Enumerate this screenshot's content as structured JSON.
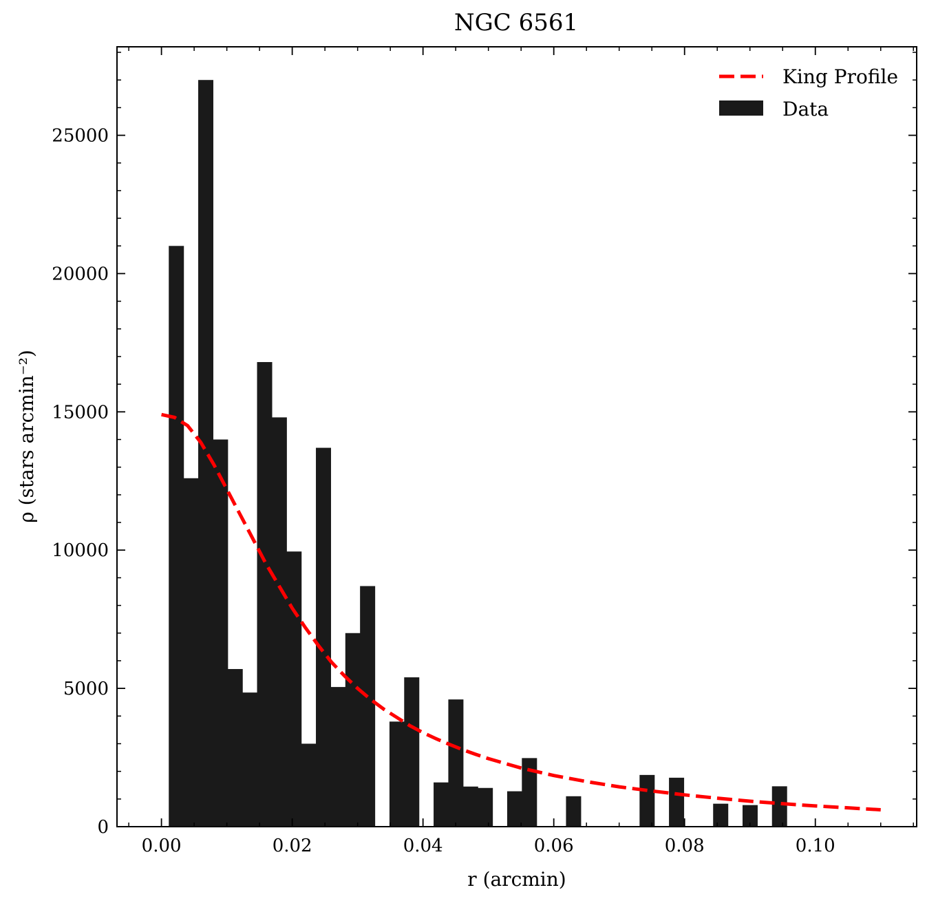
{
  "chart_data": {
    "type": "bar",
    "title": "NGC 6561",
    "xlabel": "r (arcmin)",
    "ylabel": "ρ (stars arcmin⁻²)",
    "xlim": [
      -0.0068,
      0.1155
    ],
    "ylim": [
      0,
      28200
    ],
    "x_ticks": [
      0.0,
      0.02,
      0.04,
      0.06,
      0.08,
      0.1
    ],
    "x_tick_labels": [
      "0.00",
      "0.02",
      "0.04",
      "0.06",
      "0.08",
      "0.10"
    ],
    "y_ticks": [
      0,
      5000,
      10000,
      15000,
      20000,
      25000
    ],
    "y_tick_labels": [
      "0",
      "5000",
      "10000",
      "15000",
      "20000",
      "25000"
    ],
    "x_minor_step": 0.005,
    "y_minor_step": 1000,
    "grid": false,
    "legend_position": "top-right",
    "colors": {
      "bars": "#1a1a1a",
      "king_profile": "#ff0000"
    },
    "series": [
      {
        "name": "Data",
        "kind": "histogram",
        "bin_width": 0.00225,
        "bins": [
          {
            "x0": 0.00112,
            "value": 21000
          },
          {
            "x0": 0.00337,
            "value": 12600
          },
          {
            "x0": 0.00562,
            "value": 27000
          },
          {
            "x0": 0.00787,
            "value": 14000
          },
          {
            "x0": 0.01012,
            "value": 5700
          },
          {
            "x0": 0.01237,
            "value": 4850
          },
          {
            "x0": 0.01462,
            "value": 16800
          },
          {
            "x0": 0.01687,
            "value": 14800
          },
          {
            "x0": 0.01912,
            "value": 9950
          },
          {
            "x0": 0.02137,
            "value": 3000
          },
          {
            "x0": 0.02362,
            "value": 13700
          },
          {
            "x0": 0.02587,
            "value": 5050
          },
          {
            "x0": 0.02812,
            "value": 7000
          },
          {
            "x0": 0.03037,
            "value": 8700
          },
          {
            "x0": 0.03487,
            "value": 3800
          },
          {
            "x0": 0.03712,
            "value": 5400
          },
          {
            "x0": 0.04162,
            "value": 1600
          },
          {
            "x0": 0.04387,
            "value": 4600
          },
          {
            "x0": 0.04612,
            "value": 1450
          },
          {
            "x0": 0.04837,
            "value": 1400
          },
          {
            "x0": 0.05287,
            "value": 1280
          },
          {
            "x0": 0.05512,
            "value": 2480
          },
          {
            "x0": 0.06187,
            "value": 1100
          },
          {
            "x0": 0.07312,
            "value": 1870
          },
          {
            "x0": 0.07762,
            "value": 1770
          },
          {
            "x0": 0.08437,
            "value": 830
          },
          {
            "x0": 0.08887,
            "value": 780
          },
          {
            "x0": 0.09337,
            "value": 1460
          }
        ]
      },
      {
        "name": "King Profile",
        "kind": "line",
        "style": "dashed",
        "points": [
          [
            0.0,
            14900
          ],
          [
            0.002,
            14800
          ],
          [
            0.004,
            14500
          ],
          [
            0.006,
            13900
          ],
          [
            0.008,
            13100
          ],
          [
            0.01,
            12200
          ],
          [
            0.012,
            11300
          ],
          [
            0.014,
            10400
          ],
          [
            0.016,
            9500
          ],
          [
            0.018,
            8700
          ],
          [
            0.02,
            7900
          ],
          [
            0.022,
            7200
          ],
          [
            0.024,
            6550
          ],
          [
            0.026,
            5950
          ],
          [
            0.028,
            5450
          ],
          [
            0.03,
            5000
          ],
          [
            0.032,
            4600
          ],
          [
            0.034,
            4250
          ],
          [
            0.036,
            3950
          ],
          [
            0.038,
            3650
          ],
          [
            0.04,
            3400
          ],
          [
            0.042,
            3180
          ],
          [
            0.044,
            2980
          ],
          [
            0.046,
            2790
          ],
          [
            0.048,
            2620
          ],
          [
            0.05,
            2460
          ],
          [
            0.055,
            2120
          ],
          [
            0.06,
            1850
          ],
          [
            0.065,
            1630
          ],
          [
            0.07,
            1440
          ],
          [
            0.075,
            1290
          ],
          [
            0.08,
            1150
          ],
          [
            0.085,
            1030
          ],
          [
            0.09,
            920
          ],
          [
            0.095,
            830
          ],
          [
            0.1,
            750
          ],
          [
            0.105,
            680
          ],
          [
            0.11,
            610
          ]
        ]
      }
    ]
  }
}
